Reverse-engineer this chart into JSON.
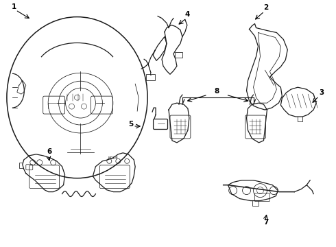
{
  "background": "#ffffff",
  "line_color": "#1a1a1a",
  "fig_width": 4.9,
  "fig_height": 3.6,
  "dpi": 100,
  "lw_main": 0.9,
  "lw_thin": 0.55,
  "lw_thick": 1.1
}
